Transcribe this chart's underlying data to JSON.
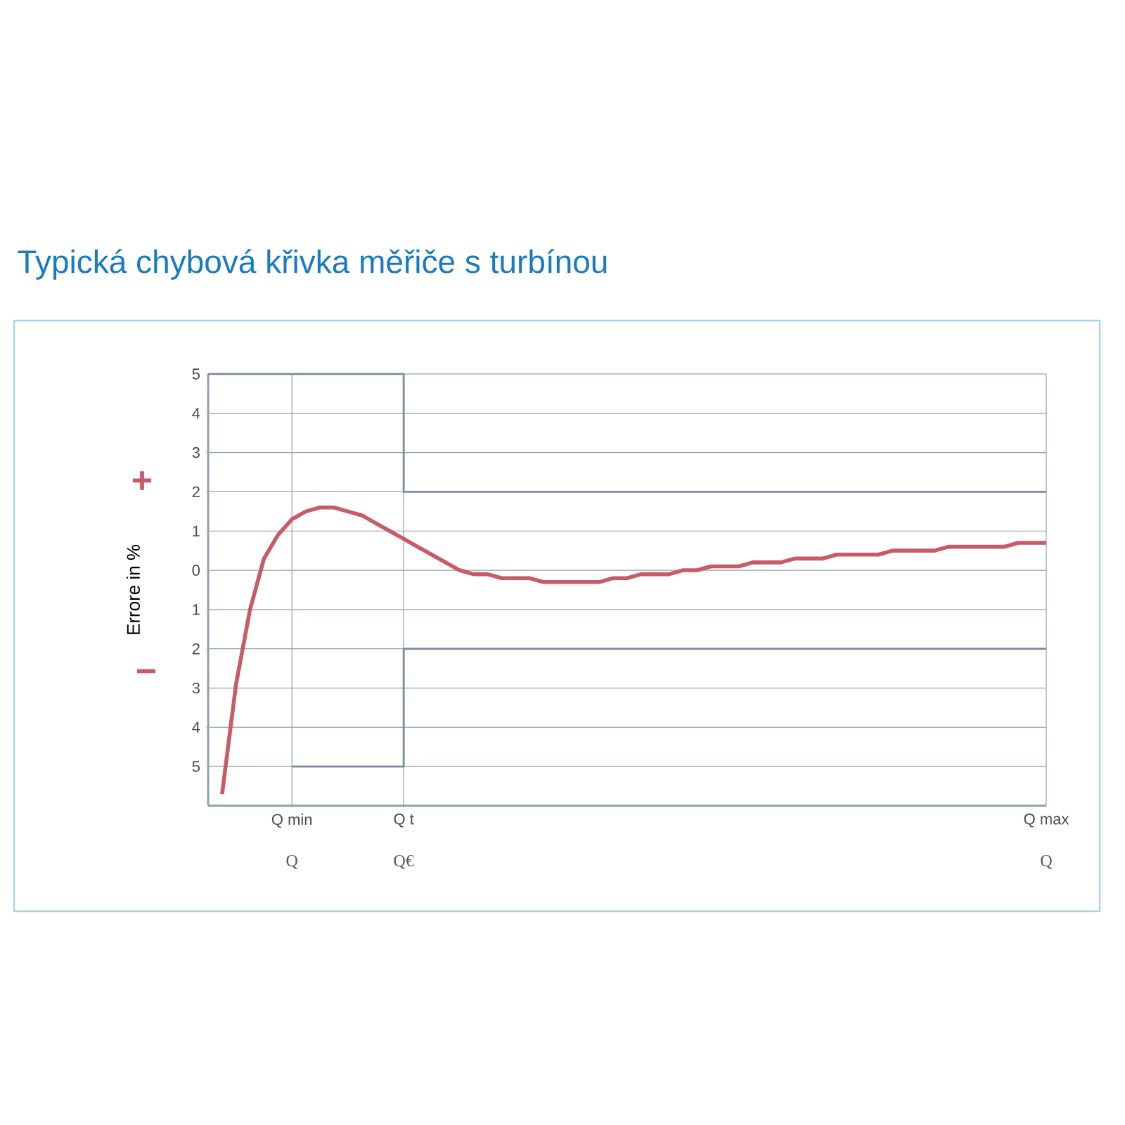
{
  "chart_data": {
    "type": "line",
    "title": "Typická chybová křivka měřiče s turbínou",
    "ylabel": "Errore in %",
    "categories": [
      null,
      null,
      null,
      null,
      null,
      null,
      "Q min",
      null,
      null,
      null,
      null,
      null,
      null,
      null,
      "Q t",
      null,
      null,
      null,
      null,
      null,
      null,
      null,
      null,
      null,
      null,
      null,
      null,
      null,
      null,
      null,
      null,
      null,
      null,
      null,
      null,
      null,
      null,
      null,
      null,
      null,
      null,
      null,
      null,
      null,
      null,
      null,
      null,
      null,
      null,
      null,
      null,
      null,
      null,
      null,
      null,
      null,
      null,
      null,
      null,
      null,
      "Q max"
    ],
    "ylim": [
      -6,
      5
    ],
    "yticks": [
      {
        "value": -5,
        "label": "5"
      },
      {
        "value": -4,
        "label": "4"
      },
      {
        "value": -3,
        "label": "3"
      },
      {
        "value": -2,
        "label": "2"
      },
      {
        "value": -1,
        "label": "1"
      },
      0,
      1,
      2,
      3,
      4,
      5
    ],
    "grid": true,
    "marker": "none",
    "line_style": "solid",
    "series": [
      {
        "color": "#c95a68",
        "values": [
          null,
          -5.7,
          -2.9,
          -1.0,
          0.3,
          0.9,
          1.3,
          1.5,
          1.6,
          1.6,
          1.5,
          1.4,
          1.2,
          1.0,
          0.8,
          0.6,
          0.4,
          0.2,
          0.0,
          -0.1,
          -0.1,
          -0.2,
          -0.2,
          -0.2,
          -0.3,
          -0.3,
          -0.3,
          -0.3,
          -0.3,
          -0.2,
          -0.2,
          -0.1,
          -0.1,
          -0.1,
          0.0,
          0.0,
          0.1,
          0.1,
          0.1,
          0.2,
          0.2,
          0.2,
          0.3,
          0.3,
          0.3,
          0.4,
          0.4,
          0.4,
          0.4,
          0.5,
          0.5,
          0.5,
          0.5,
          0.6,
          0.6,
          0.6,
          0.6,
          0.6,
          0.7,
          0.7,
          0.7
        ]
      },
      {
        "type": "step",
        "color": "#7a8aa0",
        "values": [
          5,
          5,
          5,
          5,
          5,
          5,
          5,
          5,
          5,
          5,
          5,
          5,
          5,
          5,
          5,
          2,
          2,
          2,
          2,
          2,
          2,
          2,
          2,
          2,
          2,
          2,
          2,
          2,
          2,
          2,
          2,
          2,
          2,
          2,
          2,
          2,
          2,
          2,
          2,
          2,
          2,
          2,
          2,
          2,
          2,
          2,
          2,
          2,
          2,
          2,
          2,
          2,
          2,
          2,
          2,
          2,
          2,
          2,
          2,
          2,
          2
        ]
      },
      {
        "type": "step",
        "color": "#7a8aa0",
        "values": [
          null,
          null,
          null,
          null,
          null,
          null,
          -5,
          -5,
          -5,
          -5,
          -5,
          -5,
          -5,
          -5,
          -5,
          -2,
          -2,
          -2,
          -2,
          -2,
          -2,
          -2,
          -2,
          -2,
          -2,
          -2,
          -2,
          -2,
          -2,
          -2,
          -2,
          -2,
          -2,
          -2,
          -2,
          -2,
          -2,
          -2,
          -2,
          -2,
          -2,
          -2,
          -2,
          -2,
          -2,
          -2,
          -2,
          -2,
          -2,
          -2,
          -2,
          -2,
          -2,
          -2,
          -2,
          -2,
          -2,
          -2,
          -2,
          -2,
          -2
        ]
      }
    ],
    "annotations": [
      "+",
      "−",
      "Q",
      "Q€",
      "Q"
    ]
  }
}
